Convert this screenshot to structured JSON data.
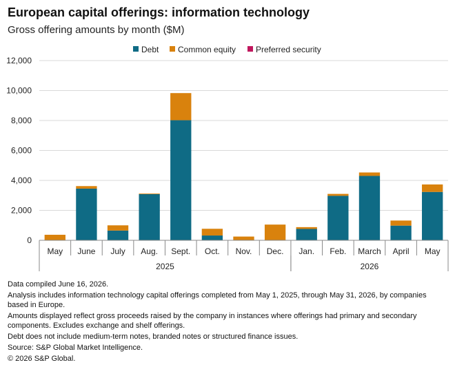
{
  "header": {
    "title": "European capital offerings: information technology",
    "subtitle": "Gross offering amounts by month ($M)"
  },
  "colors": {
    "debt": "#0f6b85",
    "common_equity": "#d9820d",
    "preferred_security": "#c0175d",
    "grid": "#d9d9d9",
    "axis": "#888888"
  },
  "chart_data": {
    "type": "bar",
    "stacked": true,
    "categories": [
      "May",
      "June",
      "July",
      "Aug.",
      "Sept.",
      "Oct.",
      "Nov.",
      "Dec.",
      "Jan.",
      "Feb.",
      "March",
      "April",
      "May"
    ],
    "year_groups": [
      {
        "label": "2025",
        "start": 0,
        "end": 7
      },
      {
        "label": "2026",
        "start": 8,
        "end": 12
      }
    ],
    "series": [
      {
        "name": "Debt",
        "color_key": "debt",
        "values": [
          0,
          3450,
          650,
          3080,
          8020,
          320,
          0,
          0,
          760,
          2970,
          4300,
          980,
          3230
        ]
      },
      {
        "name": "Common equity",
        "color_key": "common_equity",
        "values": [
          370,
          170,
          350,
          40,
          1810,
          450,
          250,
          1050,
          120,
          130,
          230,
          340,
          500
        ]
      },
      {
        "name": "Preferred security",
        "color_key": "preferred_security",
        "values": [
          0,
          0,
          0,
          0,
          0,
          0,
          0,
          0,
          0,
          0,
          0,
          0,
          0
        ]
      }
    ],
    "yticks": [
      "0",
      "2,000",
      "4,000",
      "6,000",
      "8,000",
      "10,000",
      "12,000"
    ],
    "ylim": [
      0,
      12000
    ],
    "grid": true,
    "legend_position": "top-center"
  },
  "notes": [
    "Data compiled June 16, 2026.",
    "Analysis includes information technology capital offerings completed from May 1, 2025, through May 31, 2026, by companies based in Europe.",
    "Amounts displayed reflect gross proceeds raised by the company in instances where offerings had primary and secondary components. Excludes exchange and shelf offerings.",
    "Debt does not include medium-term notes, branded notes or structured finance issues.",
    "Source: S&P Global Market Intelligence.",
    "© 2026 S&P Global."
  ]
}
